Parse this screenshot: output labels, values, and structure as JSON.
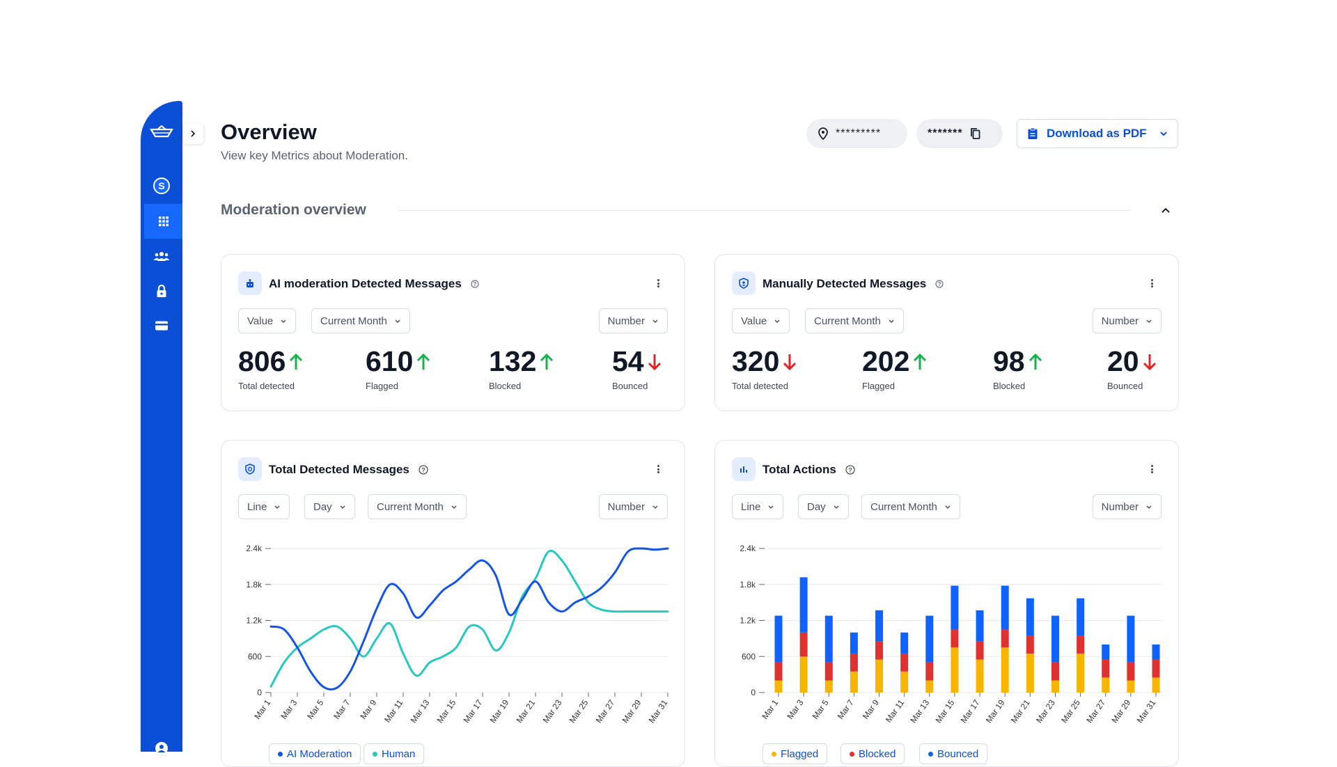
{
  "header": {
    "title": "Overview",
    "subtitle": "View key Metrics about Moderation.",
    "location_value": "*********",
    "key_value": "*******",
    "download_label": "Download as PDF"
  },
  "section": {
    "title": "Moderation overview"
  },
  "sidebar": {
    "items": [
      {
        "icon": "ship-logo-icon"
      },
      {
        "icon": "s-coin-icon"
      },
      {
        "icon": "grid-icon",
        "active": true
      },
      {
        "icon": "users-icon"
      },
      {
        "icon": "lock-icon"
      },
      {
        "icon": "card-icon"
      },
      {
        "icon": "user-circle-icon"
      }
    ]
  },
  "cards": {
    "ai": {
      "title": "AI moderation Detected Messages",
      "filters": [
        "Value",
        "Current Month",
        "Number"
      ],
      "metrics": [
        {
          "value": "806",
          "label": "Total detected",
          "trend": "up"
        },
        {
          "value": "610",
          "label": "Flagged",
          "trend": "up"
        },
        {
          "value": "132",
          "label": "Blocked",
          "trend": "up"
        },
        {
          "value": "54",
          "label": "Bounced",
          "trend": "down"
        }
      ]
    },
    "manual": {
      "title": "Manually Detected Messages",
      "filters": [
        "Value",
        "Current Month",
        "Number"
      ],
      "metrics": [
        {
          "value": "320",
          "label": "Total detected",
          "trend": "down"
        },
        {
          "value": "202",
          "label": "Flagged",
          "trend": "up"
        },
        {
          "value": "98",
          "label": "Blocked",
          "trend": "up"
        },
        {
          "value": "20",
          "label": "Bounced",
          "trend": "down"
        }
      ]
    },
    "total_detected": {
      "title": "Total Detected Messages",
      "filters": [
        "Line",
        "Day",
        "Current Month",
        "Number"
      ],
      "legend": [
        "AI Moderation",
        "Human"
      ]
    },
    "total_actions": {
      "title": "Total Actions",
      "filters": [
        "Line",
        "Day",
        "Current Month",
        "Number"
      ],
      "legend": [
        "Flagged",
        "Blocked",
        "Bounced"
      ]
    }
  },
  "colors": {
    "accent": "#0a4fd6",
    "up": "#16b34a",
    "down": "#e02424",
    "ai_line": "#1154e6",
    "human_line": "#25c9c0",
    "flagged": "#f7b500",
    "blocked": "#e03131",
    "bounced": "#0f62fe"
  },
  "chart_data": [
    {
      "type": "line",
      "title": "Total Detected Messages",
      "x": [
        "Mar 1",
        "Mar 2",
        "Mar 3",
        "Mar 4",
        "Mar 5",
        "Mar 6",
        "Mar 7",
        "Mar 8",
        "Mar 9",
        "Mar 10",
        "Mar 11",
        "Mar 12",
        "Mar 13",
        "Mar 14",
        "Mar 15",
        "Mar 16",
        "Mar 17",
        "Mar 18",
        "Mar 19",
        "Mar 20",
        "Mar 21",
        "Mar 22",
        "Mar 23",
        "Mar 24",
        "Mar 25",
        "Mar 26",
        "Mar 27",
        "Mar 28",
        "Mar 29",
        "Mar 30",
        "Mar 31"
      ],
      "x_ticks": [
        "Mar 1",
        "Mar 3",
        "Mar 5",
        "Mar 7",
        "Mar 9",
        "Mar 11",
        "Mar 13",
        "Mar 15",
        "Mar 17",
        "Mar 19",
        "Mar 21",
        "Mar 23",
        "Mar 25",
        "Mar 27",
        "Mar 29",
        "Mar 31"
      ],
      "y_ticks": [
        "0",
        "600",
        "1.2k",
        "1.8k",
        "2.4k"
      ],
      "ylim": [
        0,
        2400
      ],
      "grid": true,
      "legend_position": "bottom",
      "series": [
        {
          "name": "AI Moderation",
          "values": [
            1100,
            1050,
            750,
            350,
            90,
            80,
            350,
            850,
            1400,
            1800,
            1650,
            1250,
            1450,
            1700,
            1850,
            2050,
            2200,
            1950,
            1300,
            1550,
            1850,
            1500,
            1350,
            1500,
            1600,
            1750,
            2000,
            2350,
            2400,
            2380,
            2400
          ]
        },
        {
          "name": "Human",
          "values": [
            100,
            500,
            750,
            900,
            1050,
            1100,
            900,
            600,
            900,
            1150,
            650,
            280,
            500,
            600,
            750,
            1100,
            1050,
            700,
            1000,
            1600,
            1900,
            2350,
            2200,
            1850,
            1500,
            1380,
            1350,
            1350,
            1350,
            1350,
            1350
          ]
        }
      ]
    },
    {
      "type": "bar",
      "title": "Total Actions",
      "stacked": true,
      "categories": [
        "Mar 1",
        "Mar 3",
        "Mar 5",
        "Mar 7",
        "Mar 9",
        "Mar 11",
        "Mar 13",
        "Mar 15",
        "Mar 17",
        "Mar 19",
        "Mar 21",
        "Mar 23",
        "Mar 25",
        "Mar 27",
        "Mar 29",
        "Mar 31"
      ],
      "y_ticks": [
        "0",
        "600",
        "1.2k",
        "1.8k",
        "2.4k"
      ],
      "ylim": [
        0,
        2400
      ],
      "grid": true,
      "legend_position": "bottom",
      "series": [
        {
          "name": "Flagged",
          "values": [
            200,
            600,
            200,
            350,
            550,
            350,
            200,
            750,
            550,
            750,
            650,
            200,
            650,
            250,
            200,
            250
          ]
        },
        {
          "name": "Blocked",
          "values": [
            300,
            400,
            300,
            300,
            300,
            300,
            300,
            300,
            300,
            300,
            300,
            300,
            300,
            300,
            300,
            300
          ]
        },
        {
          "name": "Bounced",
          "values": [
            780,
            920,
            780,
            350,
            520,
            350,
            780,
            730,
            520,
            730,
            620,
            780,
            620,
            250,
            780,
            250
          ]
        }
      ]
    }
  ]
}
